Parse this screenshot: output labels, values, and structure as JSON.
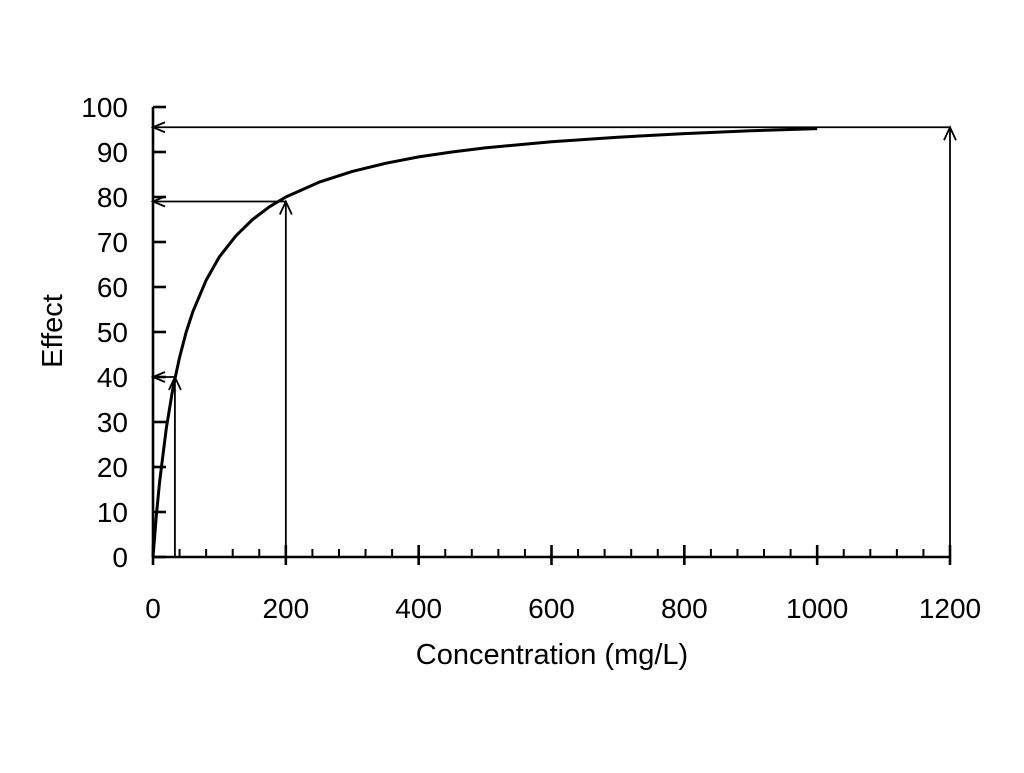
{
  "chart_data": {
    "type": "line",
    "title": "",
    "xlabel": "Concentration (mg/L)",
    "ylabel": "Effect",
    "xlim": [
      0,
      1200
    ],
    "ylim": [
      0,
      100
    ],
    "x_ticks": [
      0,
      200,
      400,
      600,
      800,
      1000,
      1200
    ],
    "x_tick_labels": [
      "0",
      "200",
      "400",
      "600",
      "800",
      "1000",
      "1200"
    ],
    "x_minor_step": 40,
    "y_ticks": [
      0,
      10,
      20,
      30,
      40,
      50,
      60,
      70,
      80,
      90,
      100
    ],
    "y_tick_labels": [
      "0",
      "10",
      "20",
      "30",
      "40",
      "50",
      "60",
      "70",
      "80",
      "90",
      "100"
    ],
    "grid": false,
    "legend": "none",
    "curve": {
      "model": "Emax",
      "emax": 100,
      "ec50": 50,
      "x": [
        0,
        5,
        10,
        20,
        30,
        40,
        50,
        60,
        80,
        100,
        125,
        150,
        175,
        200,
        250,
        300,
        350,
        400,
        450,
        500,
        600,
        700,
        800,
        900,
        1000
      ],
      "y": [
        0,
        9.1,
        16.7,
        28.6,
        37.5,
        44.4,
        50,
        54.5,
        61.5,
        66.7,
        71.4,
        75,
        77.8,
        80,
        83.3,
        85.7,
        87.5,
        88.9,
        90,
        90.9,
        92.3,
        93.3,
        94.1,
        94.7,
        95.2
      ]
    },
    "reference_lines": [
      {
        "x": 33,
        "y": 40
      },
      {
        "x": 200,
        "y": 79
      },
      {
        "x": 1200,
        "y": 95.5
      }
    ],
    "colors": {
      "line": "#000000",
      "background": "#ffffff"
    }
  }
}
